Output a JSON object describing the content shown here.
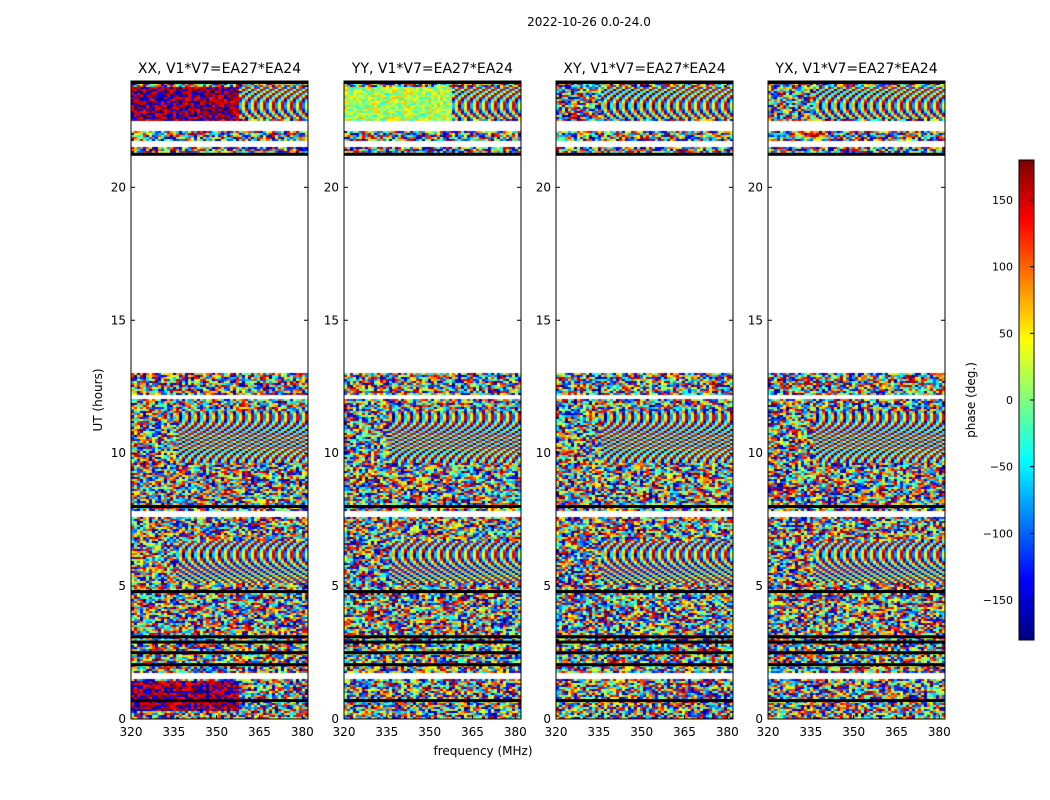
{
  "chart_data": {
    "type": "heatmap",
    "suptitle": "2022-10-26 0.0-24.0",
    "xlabel": "frequency (MHz)",
    "ylabel": "UT (hours)",
    "xlim": [
      320,
      382
    ],
    "ylim": [
      0,
      24
    ],
    "xticks": [
      320,
      335,
      350,
      365,
      380
    ],
    "yticks": [
      0,
      5,
      10,
      15,
      20
    ],
    "panels": [
      {
        "title": "XX, V1*V7=EA27*EA24",
        "variant": "xx"
      },
      {
        "title": "YY, V1*V7=EA27*EA24",
        "variant": "yy"
      },
      {
        "title": "XY, V1*V7=EA27*EA24",
        "variant": "xy"
      },
      {
        "title": "YX, V1*V7=EA27*EA24",
        "variant": "yx"
      }
    ],
    "data_blocks_hours": [
      [
        0,
        13
      ],
      [
        21.3,
        24
      ]
    ],
    "gaps_hours": [
      [
        1.5,
        1.75
      ],
      [
        7.6,
        7.8
      ],
      [
        12.05,
        12.2
      ],
      [
        13,
        21.3
      ],
      [
        21.55,
        21.75
      ],
      [
        22.1,
        22.5
      ],
      [
        23.9,
        24
      ]
    ],
    "black_rows_hours": [
      0.75,
      2.1,
      2.55,
      2.95,
      3.15,
      4.85,
      8.05,
      21.3,
      24
    ],
    "colorbar": {
      "label": "phase (deg.)",
      "min": -180,
      "max": 180,
      "ticks": [
        -150,
        -100,
        -50,
        0,
        50,
        100,
        150
      ],
      "colormap": "jet"
    }
  }
}
